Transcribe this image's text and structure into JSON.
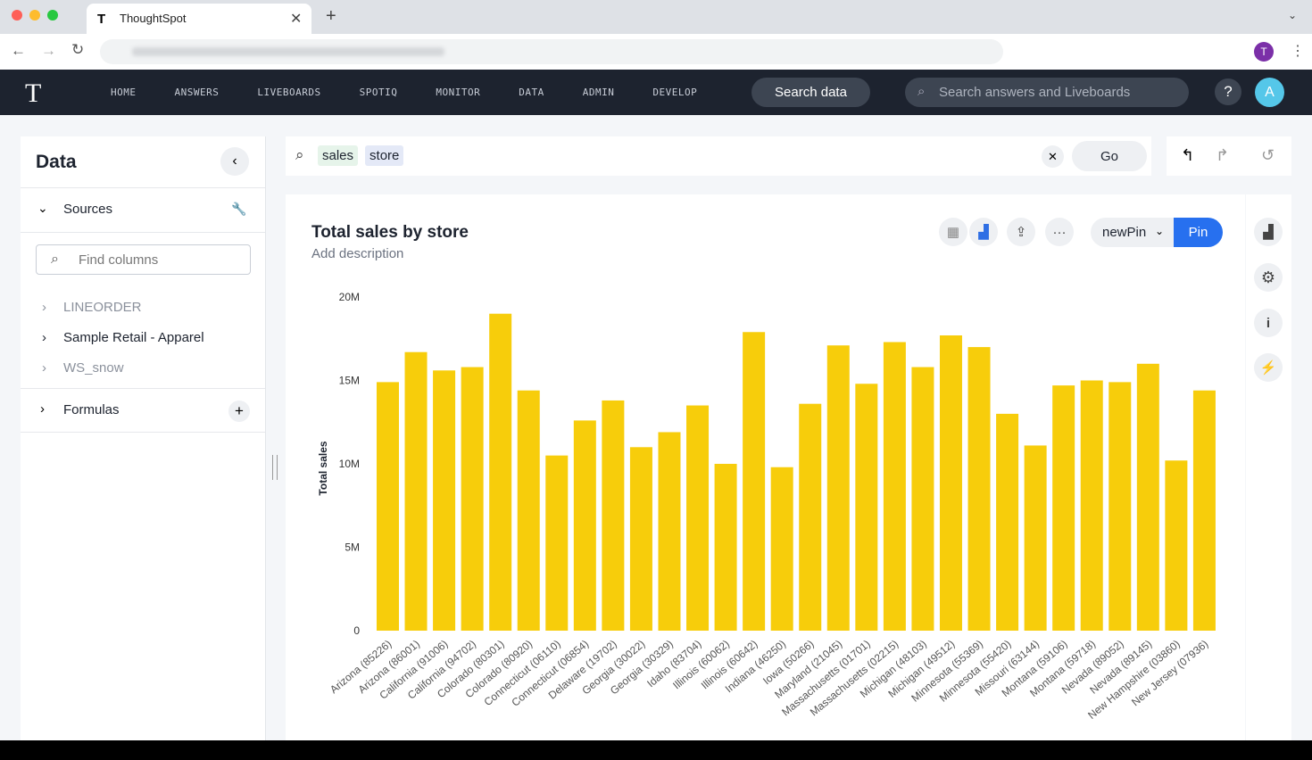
{
  "browser": {
    "tab_title": "ThoughtSpot",
    "profile": "T"
  },
  "nav": {
    "items": [
      "HOME",
      "ANSWERS",
      "LIVEBOARDS",
      "SPOTIQ",
      "MONITOR",
      "DATA",
      "ADMIN",
      "DEVELOP"
    ],
    "search_button": "Search data",
    "search_placeholder": "Search answers and Liveboards",
    "help": "?",
    "avatar": "A"
  },
  "sidebar": {
    "title": "Data",
    "sources_label": "Sources",
    "find_placeholder": "Find columns",
    "sources": [
      "LINEORDER",
      "Sample Retail - Apparel",
      "WS_snow"
    ],
    "formulas_label": "Formulas"
  },
  "search": {
    "tokens": [
      "sales",
      "store"
    ],
    "go": "Go"
  },
  "answer": {
    "description": "Add description",
    "pin_menu": "newPin",
    "pin": "Pin"
  },
  "chart_data": {
    "type": "bar",
    "title": "Total sales by store",
    "y_label": "Total sales",
    "color": "#f7cd0b",
    "grid": false,
    "categories": [
      "Arizona (85226)",
      "Arizona (86001)",
      "California (91006)",
      "California (94702)",
      "Colorado (80301)",
      "Colorado (80920)",
      "Connecticut (06110)",
      "Connecticut (06854)",
      "Delaware (19702)",
      "Georgia (30022)",
      "Georgia (30329)",
      "Idaho (83704)",
      "Illinois (60062)",
      "Illinois (60642)",
      "Indiana (46250)",
      "Iowa (50266)",
      "Maryland (21045)",
      "Massachusetts (01701)",
      "Massachusetts (02215)",
      "Michigan (48103)",
      "Michigan (49512)",
      "Minnesota (55369)",
      "Minnesota (55420)",
      "Missouri (63144)",
      "Montana (59106)",
      "Montana (59718)",
      "Nevada (89052)",
      "Nevada (89145)",
      "New Hampshire (03860)",
      "New Jersey (07936)"
    ],
    "values": [
      14900000,
      16700000,
      15600000,
      15800000,
      19000000,
      14400000,
      10500000,
      12600000,
      13800000,
      11000000,
      11900000,
      13500000,
      10000000,
      17900000,
      9800000,
      13600000,
      17100000,
      14800000,
      17300000,
      15800000,
      17700000,
      17000000,
      13000000,
      11100000,
      14700000,
      15000000,
      14900000,
      16000000,
      10200000,
      14400000
    ],
    "ylim": [
      0,
      20000000
    ],
    "yticks": [
      0,
      {
        "value": 5000000,
        "label": "5M"
      },
      {
        "value": 10000000,
        "label": "10M"
      },
      {
        "value": 15000000,
        "label": "15M"
      },
      {
        "value": 20000000,
        "label": "20M"
      }
    ]
  }
}
